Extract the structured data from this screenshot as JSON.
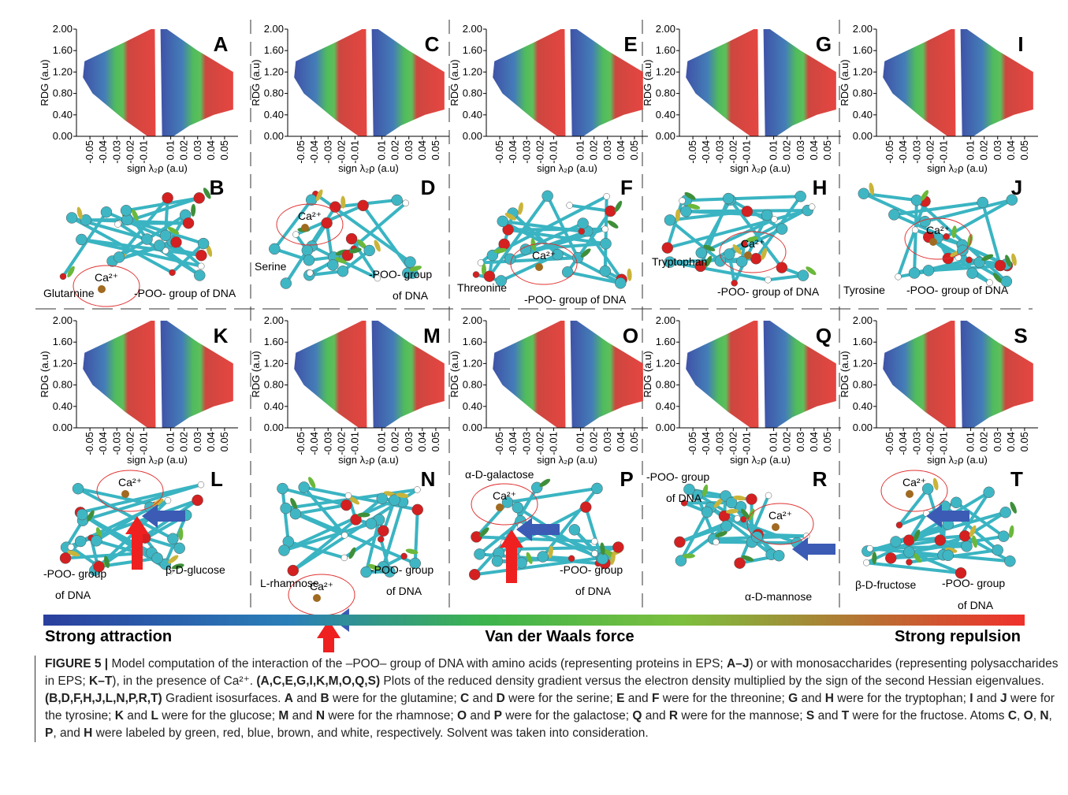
{
  "plot_axes": {
    "ylabel": "RDG (a.u)",
    "xlabel": "sign λ₂ρ (a.u)",
    "xlim": [
      -0.06,
      0.06
    ],
    "ylim": [
      0,
      2
    ],
    "yticks": [
      {
        "value": 0,
        "label": "0.00"
      },
      {
        "value": 0.4,
        "label": "0.40"
      },
      {
        "value": 0.8,
        "label": "0.80"
      },
      {
        "value": 1.2,
        "label": "1.20"
      },
      {
        "value": 1.6,
        "label": "1.60"
      },
      {
        "value": 2,
        "label": "2.00"
      }
    ],
    "xticks": [
      -0.05,
      -0.04,
      -0.03,
      -0.02,
      -0.01,
      0.01,
      0.02,
      0.03,
      0.04,
      0.05
    ]
  },
  "plots": [
    "A",
    "C",
    "E",
    "G",
    "I",
    "K",
    "M",
    "O",
    "Q",
    "S"
  ],
  "ion": "Ca²⁺",
  "structures": [
    {
      "label": "B",
      "texts": [
        "Glutarnine",
        "-POO- group of DNA"
      ]
    },
    {
      "label": "D",
      "texts": [
        "Serine",
        "-POO- group",
        "of DNA"
      ]
    },
    {
      "label": "F",
      "texts": [
        "Threonine",
        "-POO- group of DNA"
      ]
    },
    {
      "label": "H",
      "texts": [
        "Tryptophan",
        "-POO- group of DNA"
      ]
    },
    {
      "label": "J",
      "texts": [
        "Tyrosine",
        "-POO- group of DNA"
      ]
    },
    {
      "label": "L",
      "texts": [
        "-POO- group",
        "of DNA",
        "β-D-glucose"
      ]
    },
    {
      "label": "N",
      "texts": [
        "L-rhamnose",
        "-POO- group",
        "of DNA"
      ]
    },
    {
      "label": "P",
      "texts": [
        "α-D-galactose",
        "-POO- group",
        "of DNA"
      ]
    },
    {
      "label": "R",
      "texts": [
        "-POO- group",
        "of DNA",
        "α-D-mannose"
      ]
    },
    {
      "label": "T",
      "texts": [
        "β-D-fructose",
        "-POO- group",
        "of DNA"
      ]
    }
  ],
  "colorbar": [
    "Strong attraction",
    "Van der Waals force",
    "Strong repulsion"
  ],
  "caption": [
    "FIGURE 5 |",
    " Model computation of the interaction of the –POO– group of DNA with amino acids (representing proteins in EPS; ",
    "A–J",
    ") or with monosaccharides (representing polysaccharides in EPS; ",
    "K–T",
    "), in the presence of Ca²⁺. ",
    "(A,C,E,G,I,K,M,O,Q,S)",
    " Plots of the reduced density gradient versus the electron density multiplied by the sign of the second Hessian eigenvalues. ",
    "(B,D,F,H,J,L,N,P,R,T)",
    " Gradient isosurfaces. ",
    "A",
    " and ",
    "B",
    " were for the glutamine; ",
    "C",
    " and ",
    "D",
    " were for the serine; ",
    "E",
    " and ",
    "F",
    " were for the threonine; ",
    "G",
    " and ",
    "H",
    " were for the tryptophan; ",
    "I",
    " and ",
    "J",
    " were for the tyrosine; ",
    "K",
    " and ",
    "L",
    " were for the glucose; ",
    "M",
    " and ",
    "N",
    " were for the rhamnose; ",
    "O",
    " and ",
    "P",
    " were for the galactose; ",
    "Q",
    " and ",
    "R",
    " were for the mannose; ",
    "S",
    " and ",
    "T",
    " were for the fructose. Atoms ",
    "C",
    ", ",
    "O",
    ", ",
    "N",
    ", ",
    "P",
    ", and ",
    "H",
    " were labeled by green, red, blue, brown, and white, respectively. Solvent was taken into consideration."
  ]
}
